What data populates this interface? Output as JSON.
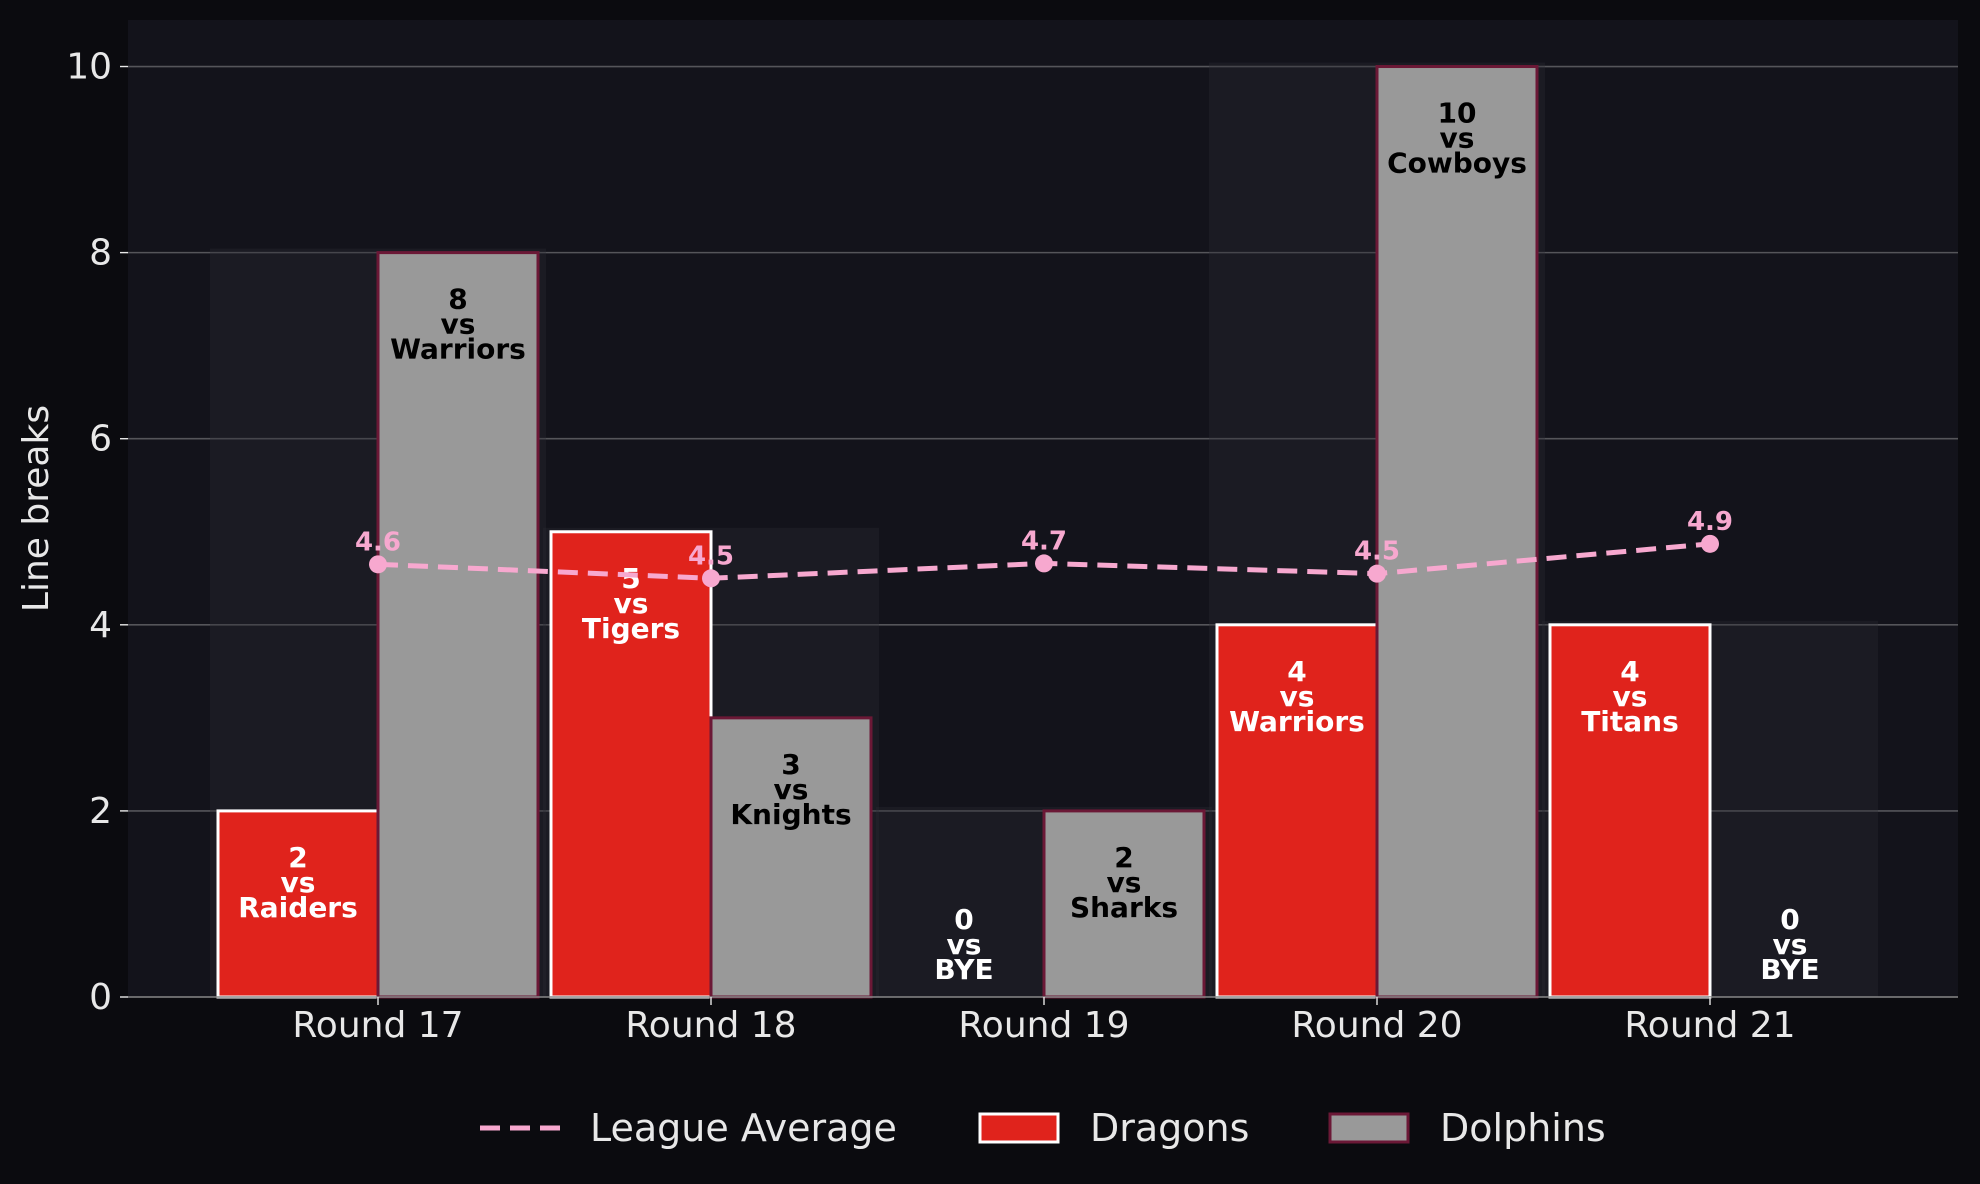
{
  "chart_data": {
    "type": "bar",
    "title": "",
    "xlabel": "",
    "ylabel": "Line breaks",
    "ylim": [
      0,
      10.5
    ],
    "yticks": [
      "0",
      "2",
      "4",
      "6",
      "8",
      "10"
    ],
    "categories": [
      "Round 17",
      "Round 18",
      "Round 19",
      "Round 20",
      "Round 21"
    ],
    "grid": "horizontal",
    "legend_position": "bottom-center",
    "series": [
      {
        "name": "Dragons",
        "kind": "bar",
        "color": "#e0231c",
        "label_color": "#ffffff",
        "values": [
          2,
          5,
          0,
          4,
          4
        ],
        "labels": [
          [
            "2",
            "vs",
            "Raiders"
          ],
          [
            "5",
            "vs",
            "Tigers"
          ],
          [
            "0",
            "vs",
            "BYE"
          ],
          [
            "4",
            "vs",
            "Warriors"
          ],
          [
            "4",
            "vs",
            "Titans"
          ]
        ]
      },
      {
        "name": "Dolphins",
        "kind": "bar",
        "color": "#999999",
        "edge_color": "#6b1836",
        "label_color": "#000000",
        "values": [
          8,
          3,
          2,
          10,
          0
        ],
        "labels": [
          [
            "8",
            "vs",
            "Warriors"
          ],
          [
            "3",
            "vs",
            "Knights"
          ],
          [
            "2",
            "vs",
            "Sharks"
          ],
          [
            "10",
            "vs",
            "Cowboys"
          ],
          [
            "0",
            "vs",
            "BYE"
          ]
        ]
      },
      {
        "name": "League Average",
        "kind": "line",
        "style": "dashed",
        "color": "#f7a8cf",
        "values": [
          4.65,
          4.5,
          4.66,
          4.55,
          4.87
        ],
        "labels": [
          "4.6",
          "4.5",
          "4.7",
          "4.5",
          "4.9"
        ]
      }
    ],
    "legend": [
      "League Average",
      "Dragons",
      "Dolphins"
    ],
    "colors": {
      "figure_background": "#0b0b0f",
      "plot_background": "#13131b",
      "grid": "#55555a",
      "text": "#e8e8e8"
    }
  }
}
